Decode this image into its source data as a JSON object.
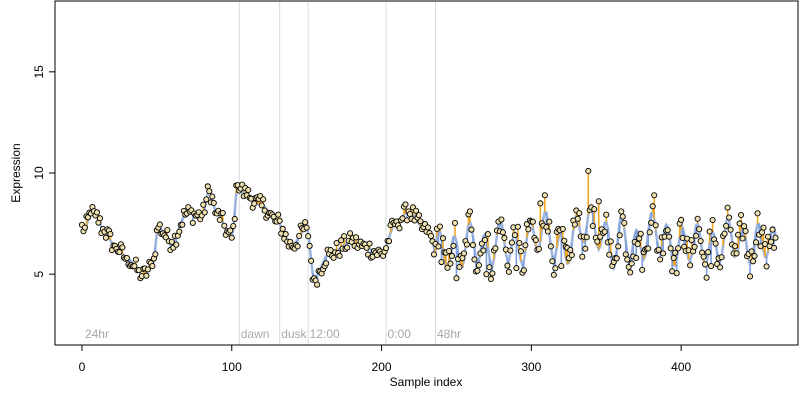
{
  "chart_data": {
    "type": "scatter",
    "title": "",
    "xlabel": "Sample index",
    "ylabel": "Expression",
    "xlim": [
      -18,
      478
    ],
    "ylim": [
      1.5,
      18.5
    ],
    "x_ticks": [
      0,
      100,
      200,
      300,
      400
    ],
    "y_ticks": [
      5,
      10,
      15
    ],
    "phase_boundaries": [
      105,
      132,
      151,
      203,
      236
    ],
    "phase_labels": [
      {
        "text": "24hr",
        "x": 2
      },
      {
        "text": "dawn",
        "x": 106
      },
      {
        "text": "dusk",
        "x": 133
      },
      {
        "text": "12:00",
        "x": 152
      },
      {
        "text": "0:00",
        "x": 204
      },
      {
        "text": "48hr",
        "x": 237
      }
    ],
    "num_points": 464,
    "observed_points": [
      {
        "x": 2,
        "y": 7.3
      },
      {
        "x": 6,
        "y": 8.0
      },
      {
        "x": 9,
        "y": 7.9
      },
      {
        "x": 15,
        "y": 7.1
      },
      {
        "x": 22,
        "y": 6.4
      },
      {
        "x": 30,
        "y": 5.8
      },
      {
        "x": 38,
        "y": 5.2
      },
      {
        "x": 40,
        "y": 4.9
      },
      {
        "x": 47,
        "y": 5.4
      },
      {
        "x": 51,
        "y": 7.3
      },
      {
        "x": 60,
        "y": 6.6
      },
      {
        "x": 70,
        "y": 8.0
      },
      {
        "x": 80,
        "y": 7.9
      },
      {
        "x": 85,
        "y": 9.1
      },
      {
        "x": 90,
        "y": 8.0
      },
      {
        "x": 100,
        "y": 6.8
      },
      {
        "x": 104,
        "y": 9.4
      },
      {
        "x": 110,
        "y": 8.9
      },
      {
        "x": 120,
        "y": 8.4
      },
      {
        "x": 130,
        "y": 7.6
      },
      {
        "x": 140,
        "y": 6.4
      },
      {
        "x": 150,
        "y": 7.3
      },
      {
        "x": 155,
        "y": 4.8
      },
      {
        "x": 165,
        "y": 6.0
      },
      {
        "x": 180,
        "y": 6.6
      },
      {
        "x": 190,
        "y": 6.3
      },
      {
        "x": 200,
        "y": 6.0
      },
      {
        "x": 210,
        "y": 7.6
      },
      {
        "x": 218,
        "y": 8.1
      },
      {
        "x": 230,
        "y": 7.1
      },
      {
        "x": 240,
        "y": 5.6
      },
      {
        "x": 250,
        "y": 4.8
      },
      {
        "x": 260,
        "y": 7.2
      },
      {
        "x": 270,
        "y": 5.0
      },
      {
        "x": 280,
        "y": 7.7
      },
      {
        "x": 290,
        "y": 5.3
      },
      {
        "x": 300,
        "y": 7.6
      },
      {
        "x": 306,
        "y": 8.5
      },
      {
        "x": 309,
        "y": 8.9
      },
      {
        "x": 320,
        "y": 5.4
      },
      {
        "x": 338,
        "y": 10.1
      },
      {
        "x": 345,
        "y": 8.6
      },
      {
        "x": 355,
        "y": 5.6
      },
      {
        "x": 360,
        "y": 8.1
      },
      {
        "x": 370,
        "y": 5.8
      },
      {
        "x": 382,
        "y": 8.9
      },
      {
        "x": 395,
        "y": 5.8
      },
      {
        "x": 410,
        "y": 6.9
      },
      {
        "x": 420,
        "y": 5.4
      },
      {
        "x": 432,
        "y": 7.8
      },
      {
        "x": 445,
        "y": 6.0
      },
      {
        "x": 455,
        "y": 7.3
      },
      {
        "x": 462,
        "y": 6.3
      }
    ],
    "colors": {
      "point_fill": "#f0e2b0",
      "point_stroke": "#000000",
      "fit_line": "#8aa6d8",
      "residual_above": "#f0a820",
      "residual_below": "#7f9fde",
      "phase_line": "#d9d9d9",
      "phase_label": "#a8a8a8"
    },
    "grid": false,
    "legend": "none"
  }
}
